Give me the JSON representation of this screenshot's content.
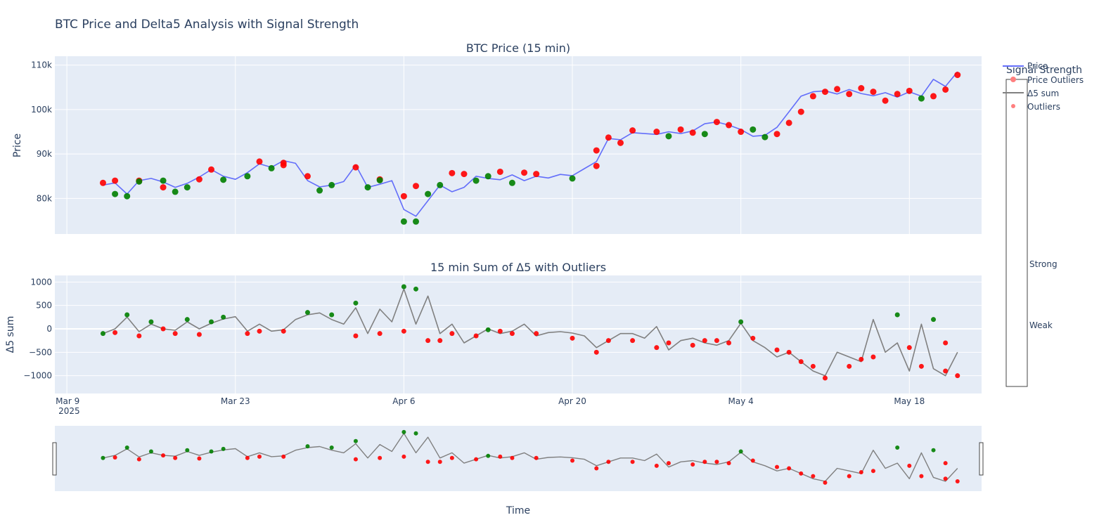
{
  "chart_data": [
    {
      "type": "line",
      "title": "BTC Price and Delta5 Analysis with Signal Strength",
      "subtitle": "BTC Price (15 min)",
      "ylabel": "Price",
      "y_tick_labels": [
        "80k",
        "90k",
        "100k",
        "110k"
      ],
      "ylim": [
        72000,
        112000
      ],
      "grid": true,
      "legend_position": "top-right",
      "series": [
        {
          "name": "Price",
          "color": "#636efa",
          "x": [
            "2025-03-12",
            "2025-03-13",
            "2025-03-14",
            "2025-03-15",
            "2025-03-16",
            "2025-03-17",
            "2025-03-18",
            "2025-03-19",
            "2025-03-20",
            "2025-03-21",
            "2025-03-22",
            "2025-03-23",
            "2025-03-24",
            "2025-03-25",
            "2025-03-26",
            "2025-03-27",
            "2025-03-28",
            "2025-03-29",
            "2025-03-30",
            "2025-03-31",
            "2025-04-01",
            "2025-04-02",
            "2025-04-03",
            "2025-04-04",
            "2025-04-05",
            "2025-04-06",
            "2025-04-07",
            "2025-04-08",
            "2025-04-09",
            "2025-04-10",
            "2025-04-11",
            "2025-04-12",
            "2025-04-13",
            "2025-04-14",
            "2025-04-15",
            "2025-04-16",
            "2025-04-17",
            "2025-04-18",
            "2025-04-19",
            "2025-04-20",
            "2025-04-21",
            "2025-04-22",
            "2025-04-23",
            "2025-04-24",
            "2025-04-25",
            "2025-04-26",
            "2025-04-27",
            "2025-04-28",
            "2025-04-29",
            "2025-04-30",
            "2025-05-01",
            "2025-05-02",
            "2025-05-03",
            "2025-05-04",
            "2025-05-05",
            "2025-05-06",
            "2025-05-07",
            "2025-05-08",
            "2025-05-09",
            "2025-05-10",
            "2025-05-11",
            "2025-05-12",
            "2025-05-13",
            "2025-05-14",
            "2025-05-15",
            "2025-05-16",
            "2025-05-17",
            "2025-05-18",
            "2025-05-19",
            "2025-05-20",
            "2025-05-21",
            "2025-05-22"
          ],
          "y": [
            83000,
            83500,
            81000,
            84000,
            84500,
            83700,
            82500,
            83400,
            84800,
            86500,
            85000,
            84300,
            85800,
            87800,
            87000,
            88500,
            87900,
            84000,
            82600,
            83000,
            83800,
            87500,
            82500,
            83200,
            84000,
            77500,
            76000,
            79500,
            83000,
            81500,
            82500,
            85000,
            84500,
            84200,
            85300,
            84000,
            85000,
            84600,
            85400,
            85100,
            86700,
            88300,
            93500,
            93200,
            94800,
            94600,
            94400,
            95000,
            94600,
            95200,
            96800,
            97200,
            96500,
            95500,
            94000,
            94200,
            96000,
            99500,
            103000,
            104000,
            104200,
            103500,
            104500,
            103600,
            103100,
            103800,
            102800,
            104000,
            103000,
            106800,
            105200,
            108500
          ]
        },
        {
          "name": "Price Outliers",
          "color": "#ff0000",
          "green_label": "Weak",
          "red_label": "Strong",
          "x": [
            "2025-03-12",
            "2025-03-13",
            "2025-03-13",
            "2025-03-14",
            "2025-03-15",
            "2025-03-15",
            "2025-03-17",
            "2025-03-17",
            "2025-03-18",
            "2025-03-19",
            "2025-03-20",
            "2025-03-21",
            "2025-03-22",
            "2025-03-24",
            "2025-03-25",
            "2025-03-26",
            "2025-03-27",
            "2025-03-27",
            "2025-03-29",
            "2025-03-30",
            "2025-03-31",
            "2025-04-02",
            "2025-04-03",
            "2025-04-04",
            "2025-04-04",
            "2025-04-06",
            "2025-04-06",
            "2025-04-07",
            "2025-04-07",
            "2025-04-08",
            "2025-04-09",
            "2025-04-10",
            "2025-04-11",
            "2025-04-12",
            "2025-04-13",
            "2025-04-14",
            "2025-04-15",
            "2025-04-16",
            "2025-04-17",
            "2025-04-20",
            "2025-04-22",
            "2025-04-22",
            "2025-04-23",
            "2025-04-24",
            "2025-04-25",
            "2025-04-27",
            "2025-04-28",
            "2025-04-29",
            "2025-04-30",
            "2025-05-01",
            "2025-05-02",
            "2025-05-03",
            "2025-05-04",
            "2025-05-05",
            "2025-05-06",
            "2025-05-07",
            "2025-05-08",
            "2025-05-09",
            "2025-05-10",
            "2025-05-11",
            "2025-05-12",
            "2025-05-13",
            "2025-05-14",
            "2025-05-15",
            "2025-05-16",
            "2025-05-17",
            "2025-05-18",
            "2025-05-19",
            "2025-05-20",
            "2025-05-21",
            "2025-05-22"
          ],
          "y": [
            83500,
            84000,
            81000,
            80500,
            84000,
            83800,
            82500,
            84000,
            81500,
            82500,
            84300,
            86500,
            84200,
            85000,
            88300,
            86800,
            88000,
            87500,
            85000,
            81800,
            83000,
            87000,
            82500,
            84300,
            84100,
            80500,
            74800,
            82800,
            74800,
            81000,
            83000,
            85700,
            85500,
            84000,
            85000,
            86000,
            83500,
            85800,
            85500,
            84500,
            87300,
            90800,
            93700,
            92500,
            95300,
            95000,
            94000,
            95500,
            94800,
            94500,
            97200,
            96500,
            95000,
            95500,
            93800,
            94500,
            97000,
            99500,
            103000,
            104000,
            104600,
            103500,
            104800,
            104000,
            102000,
            103500,
            104200,
            102500,
            103000,
            104500,
            107800
          ],
          "strength": [
            "strong",
            "strong",
            "weak",
            "weak",
            "strong",
            "weak",
            "strong",
            "weak",
            "weak",
            "weak",
            "strong",
            "strong",
            "weak",
            "weak",
            "strong",
            "weak",
            "strong",
            "strong",
            "strong",
            "weak",
            "weak",
            "strong",
            "weak",
            "strong",
            "weak",
            "strong",
            "weak",
            "strong",
            "weak",
            "weak",
            "weak",
            "strong",
            "strong",
            "weak",
            "weak",
            "strong",
            "weak",
            "strong",
            "strong",
            "weak",
            "strong",
            "strong",
            "strong",
            "strong",
            "strong",
            "strong",
            "weak",
            "strong",
            "strong",
            "weak",
            "strong",
            "strong",
            "strong",
            "weak",
            "weak",
            "strong",
            "strong",
            "strong",
            "strong",
            "strong",
            "strong",
            "strong",
            "strong",
            "strong",
            "strong",
            "strong",
            "strong",
            "weak",
            "strong",
            "strong",
            "strong"
          ]
        }
      ]
    },
    {
      "type": "line",
      "subtitle": "15 min Sum of Δ5 with Outliers",
      "xlabel": "Time",
      "ylabel": "Δ5 sum",
      "x_tick_labels": [
        "Mar 9\n2025",
        "Mar 23",
        "Apr 6",
        "Apr 20",
        "May 4",
        "May 18"
      ],
      "y_tick_labels": [
        "−1000",
        "−500",
        "0",
        "500",
        "1000"
      ],
      "ylim": [
        -1380,
        1140
      ],
      "xlim": [
        "2025-03-08",
        "2025-05-24"
      ],
      "grid": true,
      "series": [
        {
          "name": "Δ5 sum",
          "color": "#808080",
          "x": [
            "2025-03-12",
            "2025-03-13",
            "2025-03-14",
            "2025-03-15",
            "2025-03-16",
            "2025-03-17",
            "2025-03-18",
            "2025-03-19",
            "2025-03-20",
            "2025-03-21",
            "2025-03-22",
            "2025-03-23",
            "2025-03-24",
            "2025-03-25",
            "2025-03-26",
            "2025-03-27",
            "2025-03-28",
            "2025-03-29",
            "2025-03-30",
            "2025-03-31",
            "2025-04-01",
            "2025-04-02",
            "2025-04-03",
            "2025-04-04",
            "2025-04-05",
            "2025-04-06",
            "2025-04-07",
            "2025-04-08",
            "2025-04-09",
            "2025-04-10",
            "2025-04-11",
            "2025-04-12",
            "2025-04-13",
            "2025-04-14",
            "2025-04-15",
            "2025-04-16",
            "2025-04-17",
            "2025-04-18",
            "2025-04-19",
            "2025-04-20",
            "2025-04-21",
            "2025-04-22",
            "2025-04-23",
            "2025-04-24",
            "2025-04-25",
            "2025-04-26",
            "2025-04-27",
            "2025-04-28",
            "2025-04-29",
            "2025-04-30",
            "2025-05-01",
            "2025-05-02",
            "2025-05-03",
            "2025-05-04",
            "2025-05-05",
            "2025-05-06",
            "2025-05-07",
            "2025-05-08",
            "2025-05-09",
            "2025-05-10",
            "2025-05-11",
            "2025-05-12",
            "2025-05-13",
            "2025-05-14",
            "2025-05-15",
            "2025-05-16",
            "2025-05-17",
            "2025-05-18",
            "2025-05-19",
            "2025-05-20",
            "2025-05-21",
            "2025-05-22"
          ],
          "y": [
            -100,
            0,
            250,
            -60,
            100,
            0,
            -30,
            150,
            0,
            120,
            210,
            260,
            -50,
            100,
            -50,
            -20,
            200,
            300,
            340,
            200,
            100,
            450,
            -100,
            420,
            150,
            850,
            100,
            700,
            -100,
            100,
            -300,
            -150,
            0,
            -100,
            -50,
            100,
            -150,
            -80,
            -60,
            -90,
            -150,
            -400,
            -250,
            -100,
            -100,
            -200,
            50,
            -450,
            -250,
            -200,
            -300,
            -350,
            -250,
            120,
            -250,
            -400,
            -600,
            -500,
            -700,
            -900,
            -1000,
            -500,
            -600,
            -700,
            200,
            -500,
            -300,
            -900,
            100,
            -850,
            -1000,
            -500
          ]
        },
        {
          "name": "Outliers",
          "color": "#ff0000",
          "green_label": "Weak",
          "red_label": "Strong",
          "x": [
            "2025-03-12",
            "2025-03-13",
            "2025-03-14",
            "2025-03-15",
            "2025-03-16",
            "2025-03-17",
            "2025-03-18",
            "2025-03-19",
            "2025-03-20",
            "2025-03-21",
            "2025-03-22",
            "2025-03-24",
            "2025-03-25",
            "2025-03-27",
            "2025-03-29",
            "2025-03-31",
            "2025-04-02",
            "2025-04-02",
            "2025-04-04",
            "2025-04-06",
            "2025-04-06",
            "2025-04-07",
            "2025-04-08",
            "2025-04-09",
            "2025-04-10",
            "2025-04-12",
            "2025-04-13",
            "2025-04-14",
            "2025-04-15",
            "2025-04-17",
            "2025-04-20",
            "2025-04-22",
            "2025-04-23",
            "2025-04-25",
            "2025-04-27",
            "2025-04-28",
            "2025-04-30",
            "2025-05-01",
            "2025-05-02",
            "2025-05-03",
            "2025-05-04",
            "2025-05-05",
            "2025-05-07",
            "2025-05-08",
            "2025-05-09",
            "2025-05-10",
            "2025-05-11",
            "2025-05-13",
            "2025-05-14",
            "2025-05-15",
            "2025-05-17",
            "2025-05-18",
            "2025-05-19",
            "2025-05-20",
            "2025-05-21",
            "2025-05-21",
            "2025-05-22"
          ],
          "y": [
            -100,
            -80,
            300,
            -150,
            150,
            0,
            -100,
            200,
            -120,
            150,
            250,
            -100,
            -50,
            -50,
            350,
            300,
            550,
            -150,
            -100,
            900,
            -50,
            850,
            -250,
            -250,
            -100,
            -150,
            -20,
            -50,
            -100,
            -100,
            -200,
            -500,
            -250,
            -250,
            -400,
            -300,
            -350,
            -250,
            -250,
            -300,
            150,
            -200,
            -450,
            -500,
            -700,
            -800,
            -1050,
            -800,
            -650,
            -600,
            300,
            -400,
            -800,
            200,
            -900,
            -300,
            -1000
          ],
          "strength": [
            "weak",
            "strong",
            "weak",
            "strong",
            "weak",
            "strong",
            "strong",
            "weak",
            "strong",
            "weak",
            "weak",
            "strong",
            "strong",
            "strong",
            "weak",
            "weak",
            "weak",
            "strong",
            "strong",
            "weak",
            "strong",
            "weak",
            "strong",
            "strong",
            "strong",
            "strong",
            "weak",
            "strong",
            "strong",
            "strong",
            "strong",
            "strong",
            "strong",
            "strong",
            "strong",
            "strong",
            "strong",
            "strong",
            "strong",
            "strong",
            "weak",
            "strong",
            "strong",
            "strong",
            "strong",
            "strong",
            "strong",
            "strong",
            "strong",
            "strong",
            "weak",
            "strong",
            "strong",
            "weak",
            "strong",
            "strong",
            "strong"
          ]
        }
      ]
    }
  ],
  "legend": {
    "title": "Signal Strength",
    "items": [
      {
        "label": "Price",
        "kind": "line",
        "color": "#636efa"
      },
      {
        "label": "Price Outliers",
        "kind": "marker",
        "color": "#ff7f7f"
      },
      {
        "label": "Δ5 sum",
        "kind": "line",
        "color": "#808080"
      },
      {
        "label": "Outliers",
        "kind": "marker",
        "color": "#ff7f7f"
      }
    ]
  },
  "colorbar": {
    "strong_label": "Strong",
    "weak_label": "Weak",
    "strong_color": "#ff0000",
    "weak_color": "#008000"
  }
}
